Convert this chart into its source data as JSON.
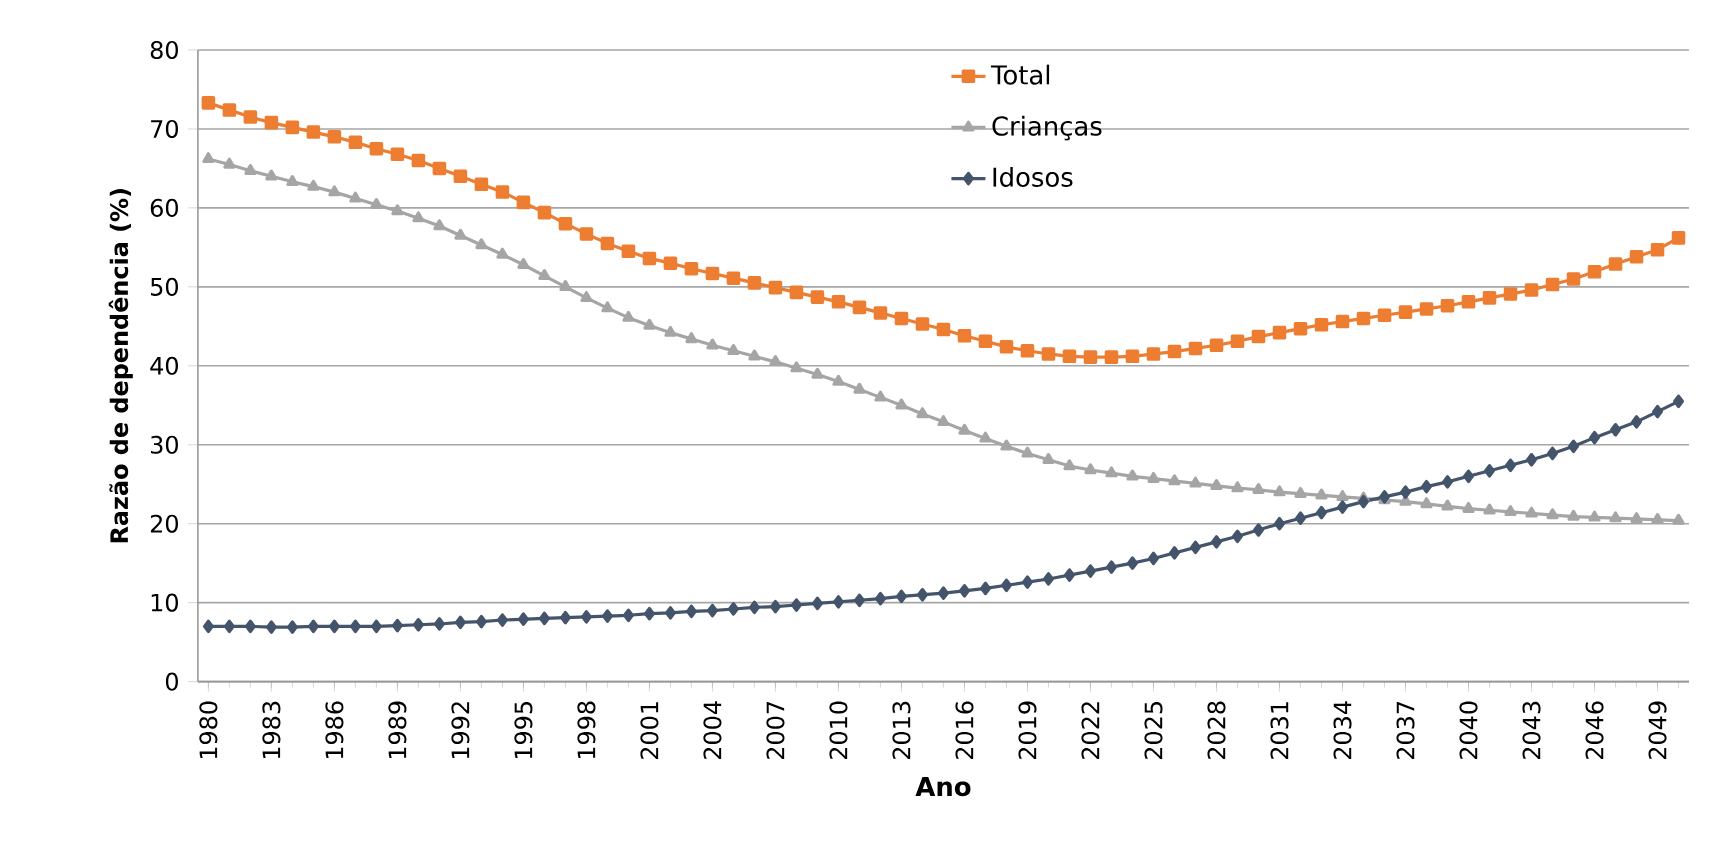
{
  "chart_data": {
    "type": "line",
    "xlabel": "Ano",
    "ylabel": "Razão de dependência (%)",
    "x": [
      1980,
      1981,
      1982,
      1983,
      1984,
      1985,
      1986,
      1987,
      1988,
      1989,
      1990,
      1991,
      1992,
      1993,
      1994,
      1995,
      1996,
      1997,
      1998,
      1999,
      2000,
      2001,
      2002,
      2003,
      2004,
      2005,
      2006,
      2007,
      2008,
      2009,
      2010,
      2011,
      2012,
      2013,
      2014,
      2015,
      2016,
      2017,
      2018,
      2019,
      2020,
      2021,
      2022,
      2023,
      2024,
      2025,
      2026,
      2027,
      2028,
      2029,
      2030,
      2031,
      2032,
      2033,
      2034,
      2035,
      2036,
      2037,
      2038,
      2039,
      2040,
      2041,
      2042,
      2043,
      2044,
      2045,
      2046,
      2047,
      2048,
      2049,
      2050
    ],
    "xlim": [
      1979.5,
      2050.5
    ],
    "xticks": [
      1980,
      1983,
      1986,
      1989,
      1992,
      1995,
      1998,
      2001,
      2004,
      2007,
      2010,
      2013,
      2016,
      2019,
      2022,
      2025,
      2028,
      2031,
      2034,
      2037,
      2040,
      2043,
      2046,
      2049
    ],
    "ylim": [
      0,
      80
    ],
    "yticks": [
      0,
      10,
      20,
      30,
      40,
      50,
      60,
      70,
      80
    ],
    "grid": "y",
    "legend": "top",
    "series": [
      {
        "name": "Total",
        "color": "#ed7d31",
        "marker": "square",
        "values": [
          73.3,
          72.4,
          71.5,
          70.8,
          70.2,
          69.6,
          69.0,
          68.3,
          67.5,
          66.8,
          66.0,
          65.0,
          64.0,
          63.0,
          62.0,
          60.7,
          59.4,
          58.0,
          56.7,
          55.5,
          54.5,
          53.6,
          53.0,
          52.3,
          51.7,
          51.1,
          50.5,
          49.9,
          49.3,
          48.7,
          48.1,
          47.4,
          46.7,
          46.0,
          45.3,
          44.6,
          43.8,
          43.1,
          42.4,
          41.9,
          41.5,
          41.2,
          41.1,
          41.1,
          41.2,
          41.5,
          41.8,
          42.2,
          42.6,
          43.1,
          43.7,
          44.2,
          44.7,
          45.2,
          45.6,
          46.0,
          46.4,
          46.8,
          47.2,
          47.6,
          48.1,
          48.6,
          49.1,
          49.6,
          50.3,
          51.0,
          51.9,
          52.9,
          53.8,
          54.7,
          56.2
        ]
      },
      {
        "name": "Crianças",
        "color": "#a5a5a5",
        "marker": "triangle",
        "values": [
          66.2,
          65.5,
          64.7,
          64.0,
          63.3,
          62.7,
          62.0,
          61.2,
          60.4,
          59.6,
          58.7,
          57.7,
          56.5,
          55.3,
          54.1,
          52.8,
          51.4,
          50.0,
          48.6,
          47.3,
          46.1,
          45.1,
          44.2,
          43.4,
          42.6,
          41.9,
          41.2,
          40.5,
          39.7,
          38.9,
          38.0,
          37.0,
          36.0,
          35.0,
          33.9,
          32.9,
          31.8,
          30.8,
          29.8,
          28.9,
          28.1,
          27.3,
          26.8,
          26.4,
          26.0,
          25.7,
          25.4,
          25.1,
          24.8,
          24.5,
          24.3,
          24.0,
          23.8,
          23.6,
          23.4,
          23.2,
          23.0,
          22.8,
          22.5,
          22.2,
          21.9,
          21.7,
          21.5,
          21.3,
          21.1,
          20.9,
          20.8,
          20.7,
          20.6,
          20.5,
          20.4
        ]
      },
      {
        "name": "Idosos",
        "color": "#44546a",
        "marker": "diamond",
        "values": [
          7.0,
          7.0,
          7.0,
          6.9,
          6.9,
          7.0,
          7.0,
          7.0,
          7.0,
          7.1,
          7.2,
          7.3,
          7.5,
          7.6,
          7.8,
          7.9,
          8.0,
          8.1,
          8.2,
          8.3,
          8.4,
          8.6,
          8.7,
          8.9,
          9.0,
          9.2,
          9.4,
          9.5,
          9.7,
          9.9,
          10.1,
          10.3,
          10.5,
          10.8,
          11.0,
          11.2,
          11.5,
          11.8,
          12.2,
          12.6,
          13.0,
          13.5,
          14.0,
          14.5,
          15.0,
          15.6,
          16.3,
          17.0,
          17.7,
          18.4,
          19.2,
          20.0,
          20.7,
          21.4,
          22.1,
          22.8,
          23.4,
          24.0,
          24.7,
          25.3,
          26.0,
          26.7,
          27.4,
          28.1,
          28.9,
          29.8,
          30.9,
          31.9,
          32.9,
          34.2,
          35.5
        ]
      }
    ]
  }
}
